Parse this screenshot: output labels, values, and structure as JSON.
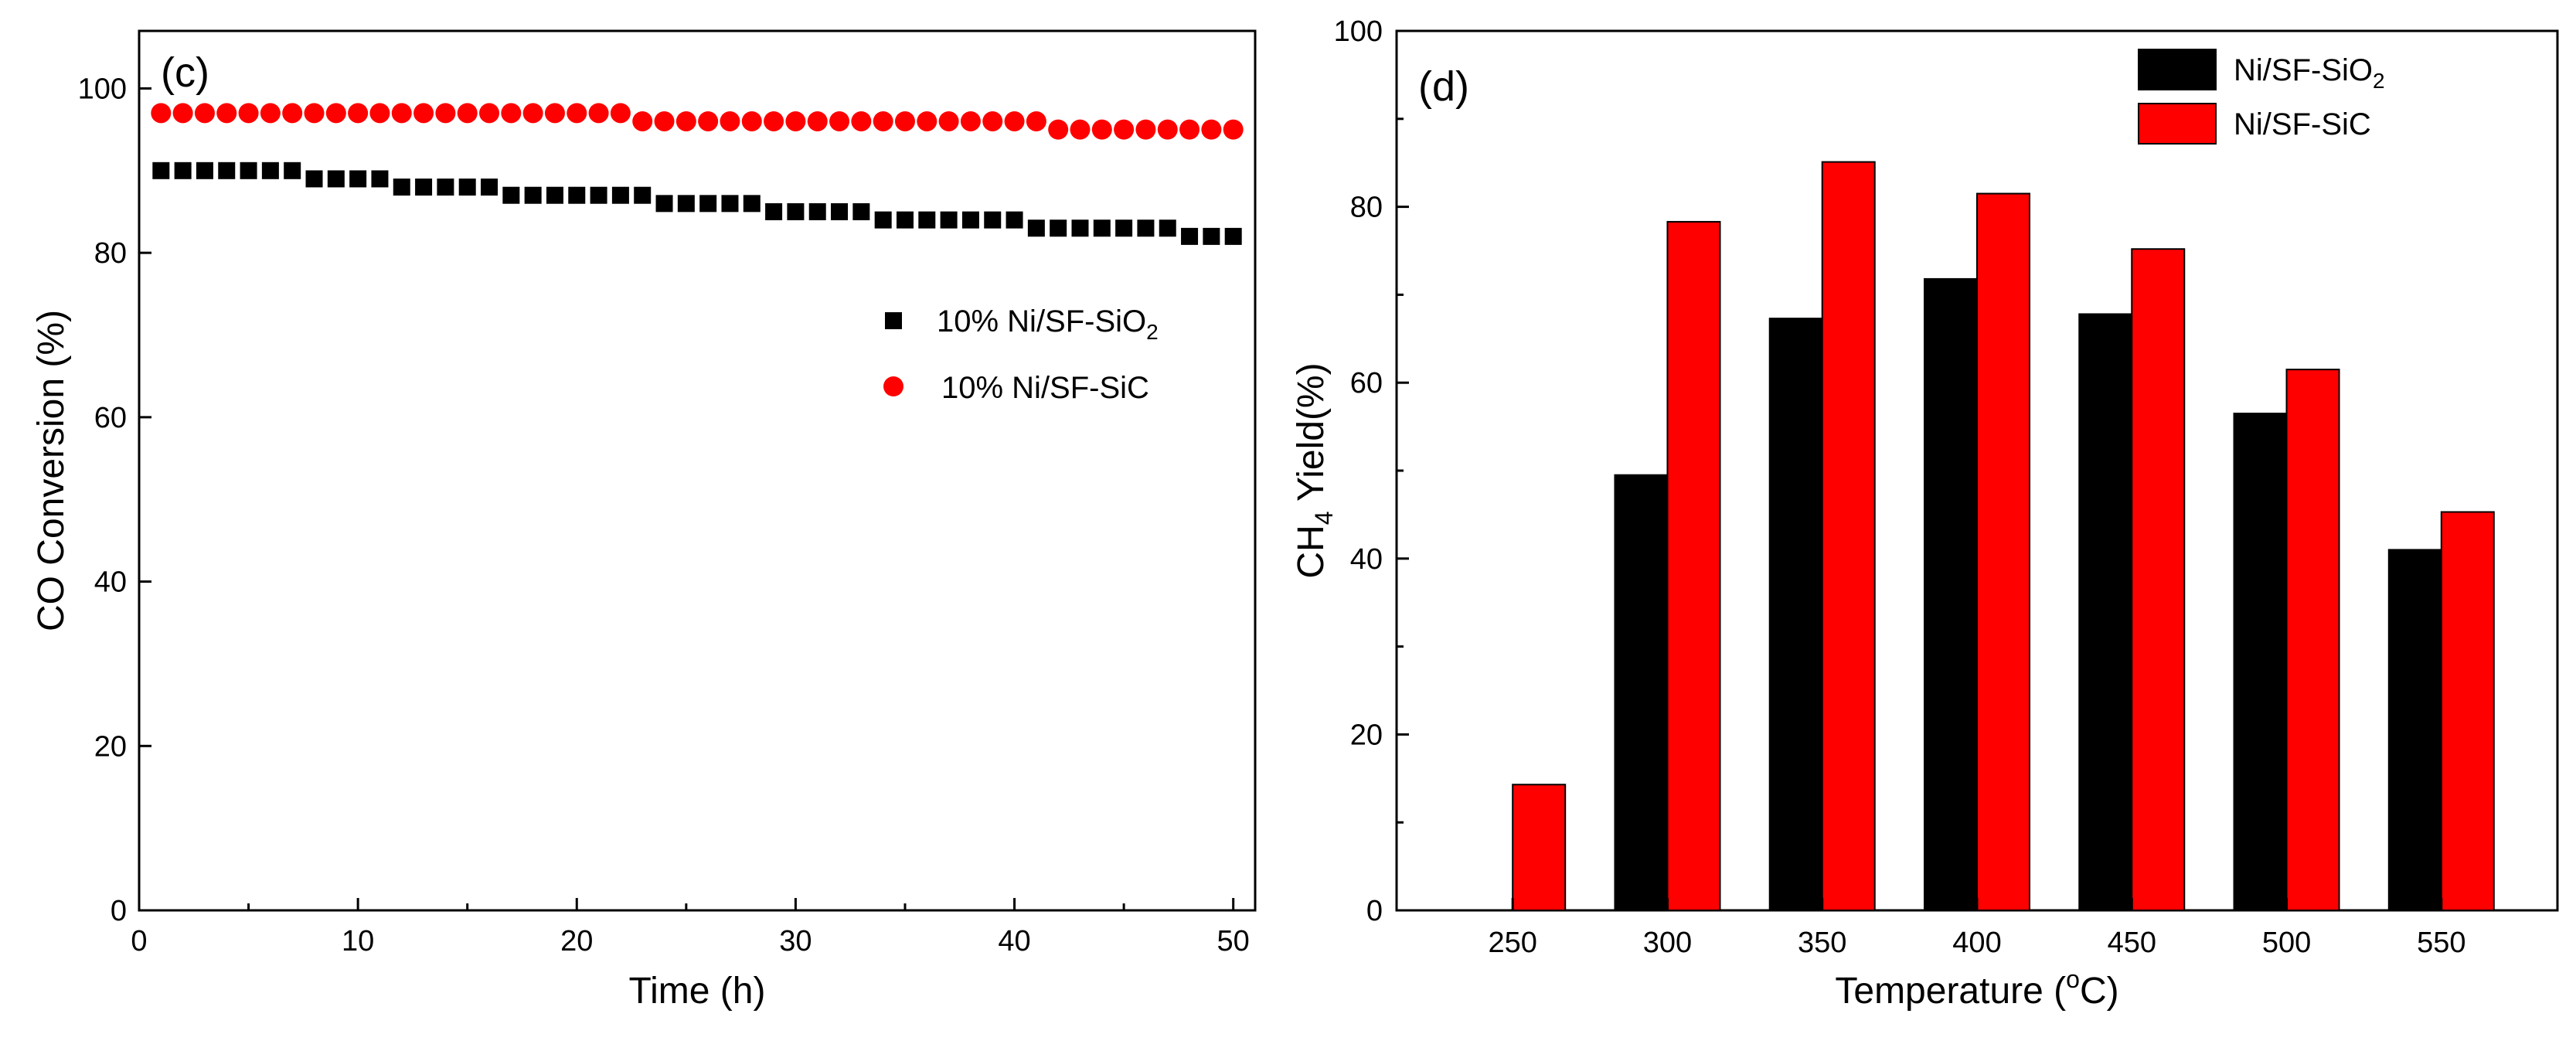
{
  "chart_data": [
    {
      "panel_label": "(c)",
      "type": "scatter",
      "xlabel": "Time (h)",
      "ylabel": "CO Conversion (%)",
      "xlim": [
        0,
        51
      ],
      "ylim": [
        0,
        107
      ],
      "xticks": [
        "0",
        "10",
        "20",
        "30",
        "40",
        "50"
      ],
      "yticks": [
        "0",
        "20",
        "40",
        "60",
        "80",
        "100"
      ],
      "legend_position": "right",
      "series": [
        {
          "name": "10% Ni/SF-SiO",
          "name_sub": "2",
          "marker": "square",
          "color": "#000000",
          "x": [
            1,
            2,
            3,
            4,
            5,
            6,
            7,
            8,
            9,
            10,
            11,
            12,
            13,
            14,
            15,
            16,
            17,
            18,
            19,
            20,
            21,
            22,
            23,
            24,
            25,
            26,
            27,
            28,
            29,
            30,
            31,
            32,
            33,
            34,
            35,
            36,
            37,
            38,
            39,
            40,
            41,
            42,
            43,
            44,
            45,
            46,
            47,
            48,
            49,
            50
          ],
          "values": [
            90,
            90,
            90,
            90,
            90,
            90,
            90,
            89,
            89,
            89,
            89,
            88,
            88,
            88,
            88,
            88,
            87,
            87,
            87,
            87,
            87,
            87,
            87,
            86,
            86,
            86,
            86,
            86,
            85,
            85,
            85,
            85,
            85,
            84,
            84,
            84,
            84,
            84,
            84,
            84,
            83,
            83,
            83,
            83,
            83,
            83,
            83,
            82,
            82,
            82
          ]
        },
        {
          "name": "10% Ni/SF-SiC",
          "name_sub": "",
          "marker": "circle",
          "color": "#ff0000",
          "x": [
            1,
            2,
            3,
            4,
            5,
            6,
            7,
            8,
            9,
            10,
            11,
            12,
            13,
            14,
            15,
            16,
            17,
            18,
            19,
            20,
            21,
            22,
            23,
            24,
            25,
            26,
            27,
            28,
            29,
            30,
            31,
            32,
            33,
            34,
            35,
            36,
            37,
            38,
            39,
            40,
            41,
            42,
            43,
            44,
            45,
            46,
            47,
            48,
            49,
            50
          ],
          "values": [
            97,
            97,
            97,
            97,
            97,
            97,
            97,
            97,
            97,
            97,
            97,
            97,
            97,
            97,
            97,
            97,
            97,
            97,
            97,
            97,
            97,
            97,
            96,
            96,
            96,
            96,
            96,
            96,
            96,
            96,
            96,
            96,
            96,
            96,
            96,
            96,
            96,
            96,
            96,
            96,
            96,
            95,
            95,
            95,
            95,
            95,
            95,
            95,
            95,
            95
          ]
        }
      ]
    },
    {
      "panel_label": "(d)",
      "type": "bar",
      "xlabel": "Temperature (",
      "xlabel_sup": "o",
      "xlabel_tail": "C)",
      "ylabel_pre": "CH",
      "ylabel_sub": "4",
      "ylabel_post": " Yield(%)",
      "ylim": [
        0,
        100
      ],
      "yticks": [
        "0",
        "20",
        "40",
        "60",
        "80",
        "100"
      ],
      "categories": [
        "250",
        "300",
        "350",
        "400",
        "450",
        "500",
        "550"
      ],
      "legend_position": "top-right",
      "series": [
        {
          "name": "Ni/SF-SiO",
          "name_sub": "2",
          "color": "#000000",
          "values": [
            0,
            49.5,
            67.3,
            71.8,
            67.8,
            56.5,
            41
          ]
        },
        {
          "name": "Ni/SF-SiC",
          "name_sub": "",
          "color": "#ff0000",
          "values": [
            14.3,
            78.3,
            85.1,
            81.5,
            75.2,
            61.5,
            45.3
          ]
        }
      ]
    }
  ]
}
